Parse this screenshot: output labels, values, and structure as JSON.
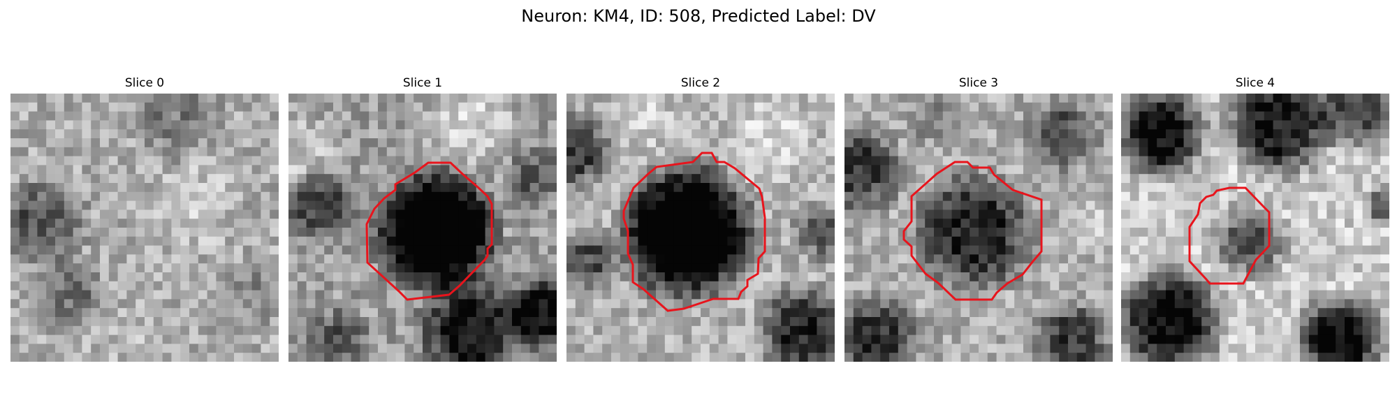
{
  "figure": {
    "suptitle": "Neuron: KM4, ID: 508, Predicted Label: DV"
  },
  "panels": [
    {
      "title": "Slice 0",
      "has_roi": false,
      "dark_center": 0.0,
      "seed": 11
    },
    {
      "title": "Slice 1",
      "has_roi": true,
      "dark_center": 0.95,
      "seed": 23
    },
    {
      "title": "Slice 2",
      "has_roi": true,
      "dark_center": 0.95,
      "seed": 37
    },
    {
      "title": "Slice 3",
      "has_roi": true,
      "dark_center": 0.6,
      "seed": 41
    },
    {
      "title": "Slice 4",
      "has_roi": true,
      "dark_center": 0.55,
      "seed": 53
    }
  ],
  "colors": {
    "roi_outline": "#e8141c",
    "background": "#ffffff"
  }
}
